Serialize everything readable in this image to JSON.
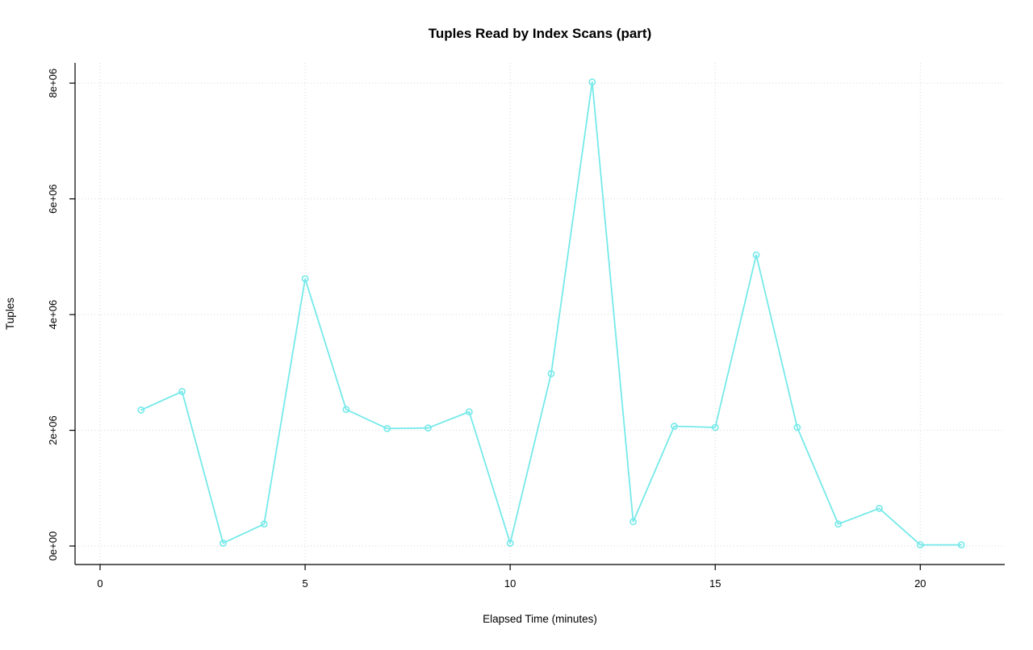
{
  "chart_data": {
    "type": "line",
    "title": "Tuples Read by Index Scans (part)",
    "xlabel": "Elapsed Time (minutes)",
    "ylabel": "Tuples",
    "x": [
      1,
      2,
      3,
      4,
      5,
      6,
      7,
      8,
      9,
      10,
      11,
      12,
      13,
      14,
      15,
      16,
      17,
      18,
      19,
      20,
      21
    ],
    "y": [
      2350000,
      2670000,
      50000,
      380000,
      4620000,
      2360000,
      2030000,
      2040000,
      2320000,
      50000,
      2980000,
      8020000,
      420000,
      2070000,
      2050000,
      5030000,
      2050000,
      380000,
      650000,
      20000,
      20000
    ],
    "xticks": [
      0,
      5,
      10,
      15,
      20
    ],
    "xtick_labels": [
      "0",
      "5",
      "10",
      "15",
      "20"
    ],
    "yticks": [
      0,
      2000000,
      4000000,
      6000000,
      8000000
    ],
    "ytick_labels": [
      "0e+00",
      "2e+06",
      "4e+06",
      "6e+06",
      "8e+06"
    ],
    "xlim": [
      -0.61,
      22.06
    ],
    "ylim": [
      -320000,
      8350000
    ],
    "series_color": "#76e9e9",
    "grid_color": "#d6d6d6",
    "axis_color": "#000000",
    "grid_style": "dotted",
    "marker": "open-circle",
    "legend": "none"
  }
}
